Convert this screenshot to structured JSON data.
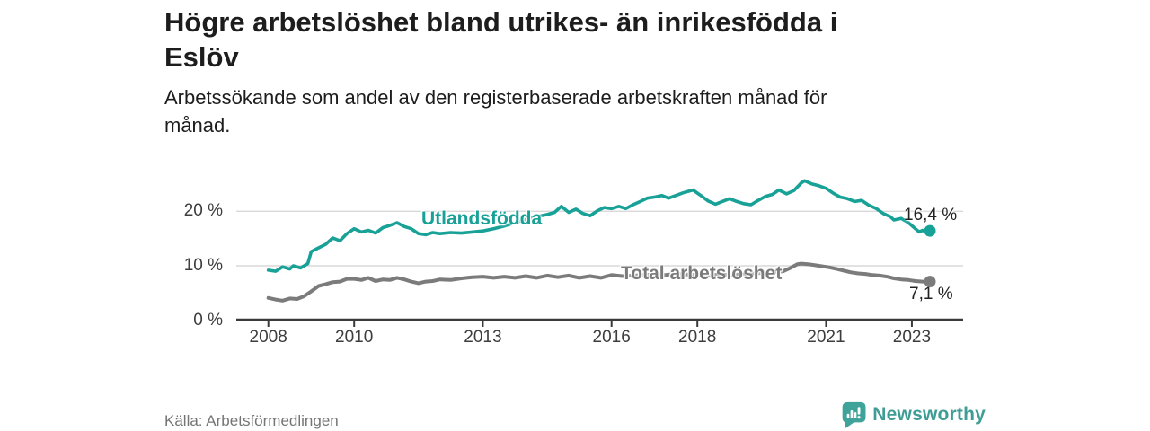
{
  "header": {
    "title_lines": [
      "Högre arbetslöshet bland utrikes- än inrikesfödda i",
      "Eslöv"
    ],
    "subtitle_lines": [
      "Arbetssökande som andel av den registerbaserade arbetskraften månad för",
      "månad."
    ]
  },
  "footer": {
    "source": "Källa: Arbetsförmedlingen",
    "logo_text": "Newsworthy",
    "logo_icon": "bar-chart-speech-bubble-icon"
  },
  "colors": {
    "accent_teal": "#18a197",
    "line_gray": "#7b7b7b",
    "axis_text": "#3d3d3d",
    "axis_line": "#3a3a3a",
    "gridline": "#d9d9d9",
    "logo_teal": "#3f9d95"
  },
  "chart_data": {
    "type": "line",
    "title": "Högre arbetslöshet bland utrikes- än inrikesfödda i Eslöv",
    "subtitle": "Arbetssökande som andel av den registerbaserade arbetskraften månad för månad.",
    "unit": "%",
    "xlabel": "",
    "ylabel": "",
    "grid": "horizontal",
    "legend_position": "inline-labels",
    "x_axis": {
      "range": [
        2007.25,
        2023.75
      ],
      "ticks": [
        {
          "value": 2008,
          "label": "2008"
        },
        {
          "value": 2010,
          "label": "2010"
        },
        {
          "value": 2013,
          "label": "2013"
        },
        {
          "value": 2016,
          "label": "2016"
        },
        {
          "value": 2018,
          "label": "2018"
        },
        {
          "value": 2021,
          "label": "2021"
        },
        {
          "value": 2023,
          "label": "2023"
        }
      ]
    },
    "y_axis": {
      "range": [
        0,
        27.5
      ],
      "gridlines": [
        10,
        20
      ],
      "ticks": [
        {
          "value": 0,
          "label": "0 %"
        },
        {
          "value": 10,
          "label": "10 %"
        },
        {
          "value": 20,
          "label": "20 %"
        }
      ]
    },
    "series": [
      {
        "name": "Total arbetslöshet",
        "color": "#7b7b7b",
        "end_label": "7,1 %",
        "end_value": 7.1,
        "points": [
          [
            2008.0,
            4.1
          ],
          [
            2008.17,
            3.8
          ],
          [
            2008.33,
            3.6
          ],
          [
            2008.5,
            4.0
          ],
          [
            2008.67,
            3.9
          ],
          [
            2008.83,
            4.4
          ],
          [
            2009.0,
            5.3
          ],
          [
            2009.17,
            6.3
          ],
          [
            2009.33,
            6.6
          ],
          [
            2009.5,
            7.0
          ],
          [
            2009.67,
            7.1
          ],
          [
            2009.83,
            7.6
          ],
          [
            2010.0,
            7.6
          ],
          [
            2010.17,
            7.4
          ],
          [
            2010.33,
            7.8
          ],
          [
            2010.5,
            7.2
          ],
          [
            2010.67,
            7.5
          ],
          [
            2010.83,
            7.4
          ],
          [
            2011.0,
            7.8
          ],
          [
            2011.17,
            7.5
          ],
          [
            2011.33,
            7.1
          ],
          [
            2011.5,
            6.8
          ],
          [
            2011.67,
            7.1
          ],
          [
            2011.83,
            7.2
          ],
          [
            2012.0,
            7.5
          ],
          [
            2012.25,
            7.4
          ],
          [
            2012.5,
            7.7
          ],
          [
            2012.75,
            7.9
          ],
          [
            2013.0,
            8.0
          ],
          [
            2013.25,
            7.8
          ],
          [
            2013.5,
            8.0
          ],
          [
            2013.75,
            7.8
          ],
          [
            2014.0,
            8.1
          ],
          [
            2014.25,
            7.8
          ],
          [
            2014.5,
            8.2
          ],
          [
            2014.75,
            7.9
          ],
          [
            2015.0,
            8.2
          ],
          [
            2015.25,
            7.8
          ],
          [
            2015.5,
            8.1
          ],
          [
            2015.75,
            7.8
          ],
          [
            2016.0,
            8.3
          ],
          [
            2016.25,
            8.1
          ],
          [
            2016.5,
            8.2
          ],
          [
            2016.75,
            8.3
          ],
          [
            2017.0,
            8.4
          ],
          [
            2017.25,
            8.3
          ],
          [
            2017.5,
            8.5
          ],
          [
            2017.75,
            8.4
          ],
          [
            2018.0,
            8.3
          ],
          [
            2018.25,
            8.2
          ],
          [
            2018.5,
            8.4
          ],
          [
            2018.75,
            8.3
          ],
          [
            2019.0,
            8.4
          ],
          [
            2019.25,
            8.5
          ],
          [
            2019.5,
            8.7
          ],
          [
            2019.75,
            8.8
          ],
          [
            2020.0,
            9.0
          ],
          [
            2020.17,
            9.6
          ],
          [
            2020.33,
            10.3
          ],
          [
            2020.42,
            10.4
          ],
          [
            2020.58,
            10.3
          ],
          [
            2020.75,
            10.1
          ],
          [
            2020.92,
            9.9
          ],
          [
            2021.08,
            9.7
          ],
          [
            2021.25,
            9.4
          ],
          [
            2021.42,
            9.1
          ],
          [
            2021.58,
            8.8
          ],
          [
            2021.75,
            8.6
          ],
          [
            2021.92,
            8.5
          ],
          [
            2022.08,
            8.3
          ],
          [
            2022.25,
            8.2
          ],
          [
            2022.42,
            8.0
          ],
          [
            2022.58,
            7.7
          ],
          [
            2022.75,
            7.5
          ],
          [
            2022.92,
            7.4
          ],
          [
            2023.08,
            7.2
          ],
          [
            2023.25,
            7.1
          ],
          [
            2023.42,
            7.1
          ]
        ]
      },
      {
        "name": "Utlandsfödda",
        "color": "#18a197",
        "end_label": "16,4 %",
        "end_value": 16.4,
        "points": [
          [
            2008.0,
            9.2
          ],
          [
            2008.17,
            9.0
          ],
          [
            2008.33,
            9.8
          ],
          [
            2008.5,
            9.4
          ],
          [
            2008.58,
            10.0
          ],
          [
            2008.75,
            9.6
          ],
          [
            2008.92,
            10.4
          ],
          [
            2009.0,
            12.6
          ],
          [
            2009.17,
            13.3
          ],
          [
            2009.33,
            13.9
          ],
          [
            2009.5,
            15.1
          ],
          [
            2009.67,
            14.6
          ],
          [
            2009.83,
            15.9
          ],
          [
            2010.0,
            16.8
          ],
          [
            2010.17,
            16.2
          ],
          [
            2010.33,
            16.5
          ],
          [
            2010.5,
            16.0
          ],
          [
            2010.67,
            17.0
          ],
          [
            2010.83,
            17.4
          ],
          [
            2011.0,
            17.9
          ],
          [
            2011.17,
            17.2
          ],
          [
            2011.33,
            16.8
          ],
          [
            2011.5,
            15.9
          ],
          [
            2011.67,
            15.7
          ],
          [
            2011.83,
            16.1
          ],
          [
            2012.0,
            15.9
          ],
          [
            2012.25,
            16.1
          ],
          [
            2012.5,
            16.0
          ],
          [
            2012.75,
            16.2
          ],
          [
            2013.0,
            16.4
          ],
          [
            2013.25,
            16.8
          ],
          [
            2013.5,
            17.3
          ],
          [
            2013.75,
            17.9
          ],
          [
            2014.0,
            18.5
          ],
          [
            2014.25,
            19.0
          ],
          [
            2014.5,
            19.4
          ],
          [
            2014.67,
            19.8
          ],
          [
            2014.83,
            20.9
          ],
          [
            2015.0,
            19.8
          ],
          [
            2015.17,
            20.4
          ],
          [
            2015.33,
            19.6
          ],
          [
            2015.5,
            19.2
          ],
          [
            2015.67,
            20.1
          ],
          [
            2015.83,
            20.7
          ],
          [
            2016.0,
            20.5
          ],
          [
            2016.17,
            20.9
          ],
          [
            2016.33,
            20.5
          ],
          [
            2016.5,
            21.2
          ],
          [
            2016.67,
            21.8
          ],
          [
            2016.83,
            22.4
          ],
          [
            2017.0,
            22.6
          ],
          [
            2017.17,
            22.9
          ],
          [
            2017.33,
            22.4
          ],
          [
            2017.5,
            22.9
          ],
          [
            2017.67,
            23.4
          ],
          [
            2017.9,
            23.9
          ],
          [
            2018.08,
            22.9
          ],
          [
            2018.25,
            21.9
          ],
          [
            2018.42,
            21.3
          ],
          [
            2018.58,
            21.8
          ],
          [
            2018.75,
            22.3
          ],
          [
            2018.92,
            21.8
          ],
          [
            2019.08,
            21.4
          ],
          [
            2019.25,
            21.2
          ],
          [
            2019.42,
            22.0
          ],
          [
            2019.58,
            22.7
          ],
          [
            2019.75,
            23.1
          ],
          [
            2019.9,
            23.9
          ],
          [
            2020.08,
            23.2
          ],
          [
            2020.25,
            23.8
          ],
          [
            2020.42,
            25.2
          ],
          [
            2020.5,
            25.6
          ],
          [
            2020.67,
            25.0
          ],
          [
            2020.83,
            24.7
          ],
          [
            2021.0,
            24.2
          ],
          [
            2021.17,
            23.3
          ],
          [
            2021.33,
            22.6
          ],
          [
            2021.5,
            22.3
          ],
          [
            2021.67,
            21.8
          ],
          [
            2021.83,
            22.0
          ],
          [
            2022.0,
            21.1
          ],
          [
            2022.17,
            20.5
          ],
          [
            2022.33,
            19.6
          ],
          [
            2022.5,
            19.0
          ],
          [
            2022.58,
            18.4
          ],
          [
            2022.75,
            18.7
          ],
          [
            2022.92,
            17.9
          ],
          [
            2023.08,
            16.8
          ],
          [
            2023.17,
            16.2
          ],
          [
            2023.25,
            16.5
          ],
          [
            2023.33,
            16.2
          ],
          [
            2023.42,
            16.4
          ]
        ]
      }
    ]
  }
}
